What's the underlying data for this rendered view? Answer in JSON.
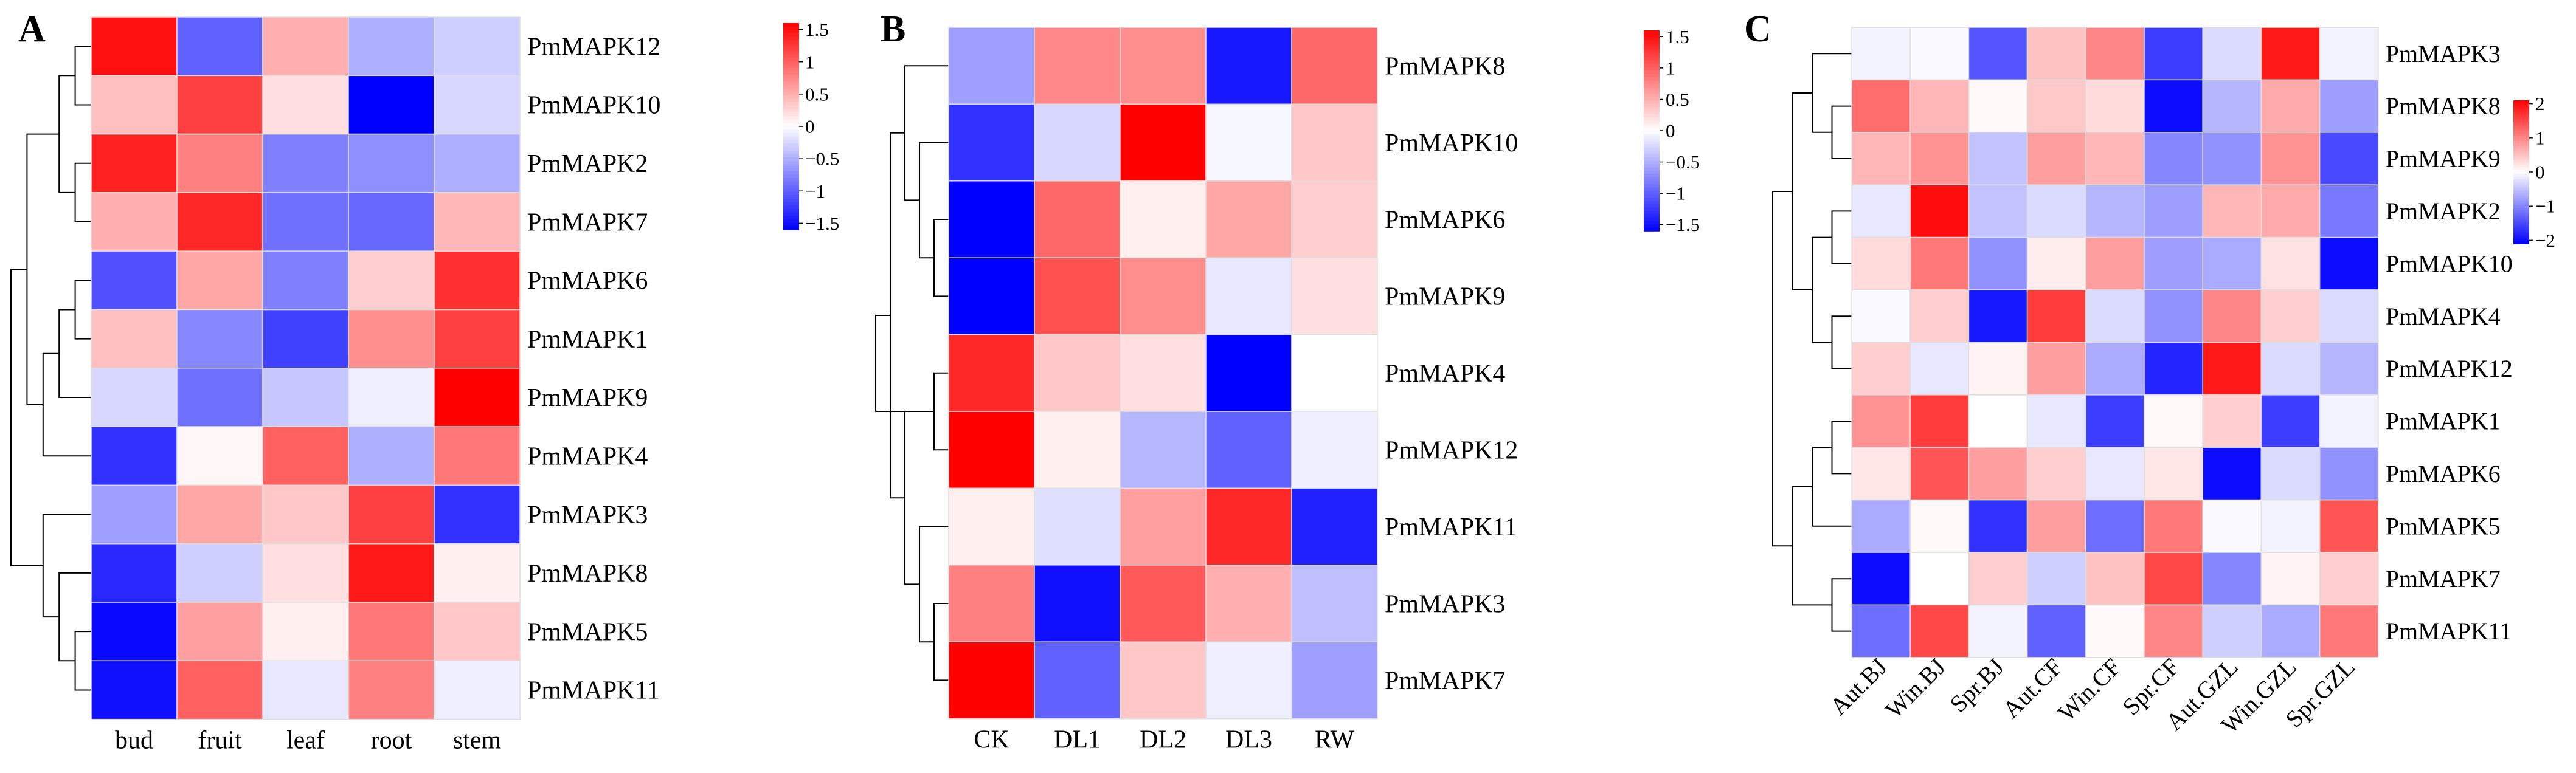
{
  "figure": {
    "colors": {
      "low": "#0000ff",
      "mid": "#ffffff",
      "high": "#ff0000",
      "grid": "#dddddd",
      "line": "#000000"
    }
  },
  "chart_data": [
    {
      "type": "heatmap",
      "panel_label": "A",
      "title": "",
      "columns": [
        "bud",
        "fruit",
        "leaf",
        "root",
        "stem"
      ],
      "rows": [
        "PmMAPK12",
        "PmMAPK10",
        "PmMAPK2",
        "PmMAPK7",
        "PmMAPK6",
        "PmMAPK1",
        "PmMAPK9",
        "PmMAPK4",
        "PmMAPK3",
        "PmMAPK8",
        "PmMAPK5",
        "PmMAPK11"
      ],
      "values": [
        [
          1.5,
          -1.0,
          0.5,
          -0.5,
          -0.3
        ],
        [
          0.4,
          1.2,
          0.2,
          -1.6,
          -0.25
        ],
        [
          1.4,
          0.8,
          -0.8,
          -0.7,
          -0.5
        ],
        [
          0.5,
          1.35,
          -0.9,
          -0.95,
          0.45
        ],
        [
          -1.1,
          0.55,
          -0.8,
          0.3,
          1.3
        ],
        [
          0.4,
          -0.75,
          -1.2,
          0.7,
          1.2
        ],
        [
          -0.25,
          -0.9,
          -0.35,
          -0.1,
          1.6
        ],
        [
          -1.3,
          0.05,
          1.0,
          -0.5,
          0.85
        ],
        [
          -0.6,
          0.55,
          0.35,
          1.2,
          -1.3
        ],
        [
          -1.35,
          -0.3,
          0.2,
          1.45,
          0.1
        ],
        [
          -1.55,
          0.6,
          0.1,
          0.85,
          0.35
        ],
        [
          -1.5,
          1.0,
          -0.15,
          0.8,
          -0.1
        ]
      ],
      "colorbar": {
        "ticks": [
          1.5,
          1,
          0.5,
          0,
          -0.5,
          -1,
          -1.5
        ],
        "tick_labels": [
          "1.5",
          "1",
          "0.5",
          "0",
          "−0.5",
          "−1",
          "−1.5"
        ],
        "range": [
          -1.6,
          1.6
        ]
      },
      "row_dendrogram": [
        [
          0,
          1,
          1
        ],
        [
          2,
          3,
          1
        ],
        [
          12,
          13,
          2
        ],
        [
          4,
          5,
          1
        ],
        [
          6,
          15,
          2
        ],
        [
          7,
          16,
          3
        ],
        [
          14,
          17,
          4
        ],
        [
          10,
          11,
          1
        ],
        [
          9,
          19,
          2
        ],
        [
          8,
          20,
          3
        ],
        [
          18,
          21,
          5
        ]
      ]
    },
    {
      "type": "heatmap",
      "panel_label": "B",
      "title": "",
      "columns": [
        "CK",
        "DL1",
        "DL2",
        "DL3",
        "RW"
      ],
      "rows": [
        "PmMAPK8",
        "PmMAPK10",
        "PmMAPK6",
        "PmMAPK9",
        "PmMAPK4",
        "PmMAPK12",
        "PmMAPK11",
        "PmMAPK3",
        "PmMAPK7"
      ],
      "values": [
        [
          -0.6,
          0.75,
          0.7,
          -1.45,
          0.95
        ],
        [
          -1.3,
          -0.25,
          1.6,
          -0.05,
          0.35
        ],
        [
          -1.6,
          0.95,
          0.1,
          0.55,
          0.3
        ],
        [
          -1.6,
          1.1,
          0.7,
          -0.15,
          0.2
        ],
        [
          1.35,
          0.35,
          0.2,
          -1.6,
          0.0
        ],
        [
          1.6,
          0.1,
          -0.45,
          -1.0,
          -0.1
        ],
        [
          0.1,
          -0.2,
          0.6,
          1.35,
          -1.4
        ],
        [
          0.8,
          -1.5,
          1.05,
          0.5,
          -0.4
        ],
        [
          1.6,
          -1.0,
          0.35,
          -0.1,
          -0.6
        ]
      ],
      "colorbar": {
        "ticks": [
          1.5,
          1,
          0.5,
          0,
          -0.5,
          -1,
          -1.5
        ],
        "tick_labels": [
          "1.5",
          "1",
          "0.5",
          "0",
          "−0.5",
          "−1",
          "−1.5"
        ],
        "range": [
          -1.6,
          1.6
        ]
      },
      "row_dendrogram": [
        [
          2,
          3,
          1
        ],
        [
          1,
          9,
          2
        ],
        [
          0,
          10,
          3
        ],
        [
          4,
          5,
          1
        ],
        [
          7,
          8,
          1
        ],
        [
          6,
          13,
          2
        ],
        [
          12,
          14,
          3
        ],
        [
          11,
          15,
          4
        ],
        [
          12,
          16,
          5
        ]
      ]
    },
    {
      "type": "heatmap",
      "panel_label": "C",
      "title": "",
      "columns": [
        "Aut.BJ",
        "Win.BJ",
        "Spr.BJ",
        "Aut.CF",
        "Win.CF",
        "Spr.CF",
        "Aut.GZL",
        "Win.GZL",
        "Spr.GZL"
      ],
      "rows": [
        "PmMAPK3",
        "PmMAPK8",
        "PmMAPK9",
        "PmMAPK2",
        "PmMAPK10",
        "PmMAPK4",
        "PmMAPK12",
        "PmMAPK1",
        "PmMAPK6",
        "PmMAPK5",
        "PmMAPK7",
        "PmMAPK11"
      ],
      "values": [
        [
          -0.1,
          -0.05,
          -1.4,
          0.5,
          1.0,
          -1.6,
          -0.3,
          1.9,
          -0.1
        ],
        [
          1.2,
          0.6,
          0.05,
          0.45,
          0.3,
          -2.0,
          -0.6,
          0.7,
          -0.8
        ],
        [
          0.6,
          0.9,
          -0.5,
          0.8,
          0.6,
          -1.0,
          -0.9,
          0.9,
          -1.5
        ],
        [
          -0.2,
          2.0,
          -0.5,
          -0.3,
          -0.6,
          -0.8,
          0.6,
          0.7,
          -1.1
        ],
        [
          0.3,
          1.1,
          -0.9,
          0.15,
          0.8,
          -0.8,
          -0.7,
          0.25,
          -2.0
        ],
        [
          -0.05,
          0.4,
          -1.9,
          1.6,
          -0.3,
          -0.9,
          1.0,
          0.4,
          -0.3
        ],
        [
          0.4,
          -0.2,
          0.1,
          0.8,
          -0.7,
          -1.8,
          1.9,
          -0.3,
          -0.6
        ],
        [
          0.9,
          1.6,
          0.0,
          -0.2,
          -1.6,
          0.05,
          0.4,
          -1.6,
          -0.1
        ],
        [
          0.2,
          1.4,
          0.8,
          0.4,
          -0.2,
          0.2,
          -2.0,
          -0.3,
          -0.9
        ],
        [
          -0.7,
          0.05,
          -1.7,
          0.8,
          -1.2,
          1.1,
          -0.05,
          -0.1,
          1.4
        ],
        [
          -2.0,
          0.0,
          0.4,
          -0.4,
          0.5,
          1.5,
          -1.0,
          0.1,
          0.4
        ],
        [
          -1.2,
          1.5,
          -0.1,
          -1.3,
          0.05,
          1.0,
          -0.4,
          -0.7,
          1.1
        ]
      ],
      "colorbar": {
        "ticks": [
          2,
          1,
          0,
          -1,
          -2
        ],
        "tick_labels": [
          "2",
          "1",
          "0",
          "−1",
          "−2"
        ],
        "range": [
          -2.1,
          2.1
        ]
      },
      "row_dendrogram": [
        [
          1,
          2,
          1
        ],
        [
          0,
          12,
          2
        ],
        [
          3,
          4,
          1
        ],
        [
          5,
          6,
          1
        ],
        [
          14,
          15,
          2
        ],
        [
          13,
          16,
          3
        ],
        [
          7,
          8,
          1
        ],
        [
          9,
          18,
          2
        ],
        [
          10,
          11,
          1
        ],
        [
          19,
          20,
          3
        ],
        [
          17,
          21,
          4
        ]
      ]
    }
  ]
}
